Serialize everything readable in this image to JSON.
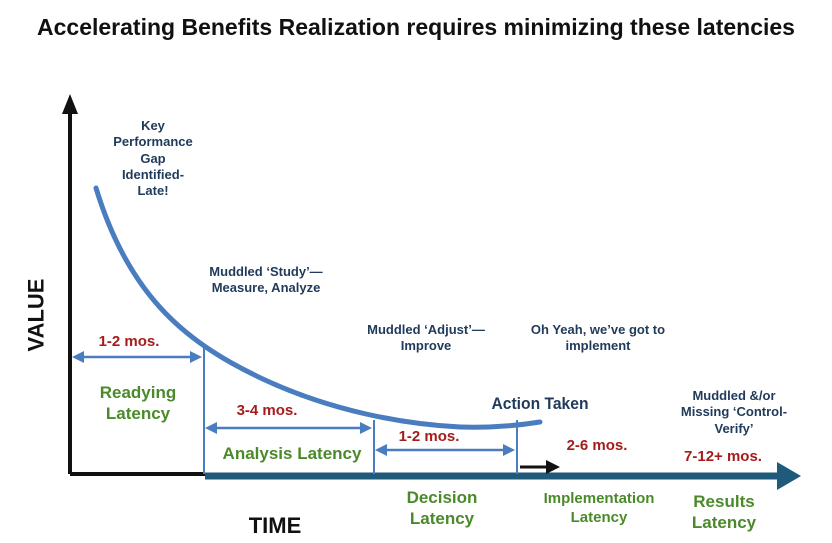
{
  "title": "Accelerating Benefits Realization requires minimizing these latencies",
  "axes": {
    "y_label": "VALUE",
    "x_label": "TIME"
  },
  "annotations": {
    "gap_identified": "Key Performance Gap Identified-Late!",
    "study": "Muddled ‘Study’—Measure, Analyze",
    "adjust": "Muddled ‘Adjust’—Improve",
    "implement": "Oh Yeah, we’ve got to implement",
    "action_taken": "Action Taken",
    "control": "Muddled &/or Missing ‘Control-Verify’"
  },
  "durations": {
    "readying": "1-2 mos.",
    "analysis": "3-4 mos.",
    "decision": "1-2 mos.",
    "implementation": "2-6 mos.",
    "results": "7-12+ mos."
  },
  "latencies": {
    "readying": "Readying Latency",
    "analysis": "Analysis Latency",
    "decision": "Decision Latency",
    "implementation": "Implementation Latency",
    "results": "Results Latency"
  },
  "colors": {
    "axis": "#111111",
    "curve": "#4a7cc0",
    "time_arrow": "#1f5a7a",
    "duration_text": "#a51c1c",
    "latency_text": "#4a8a2a",
    "note_text": "#1f3a5a"
  }
}
